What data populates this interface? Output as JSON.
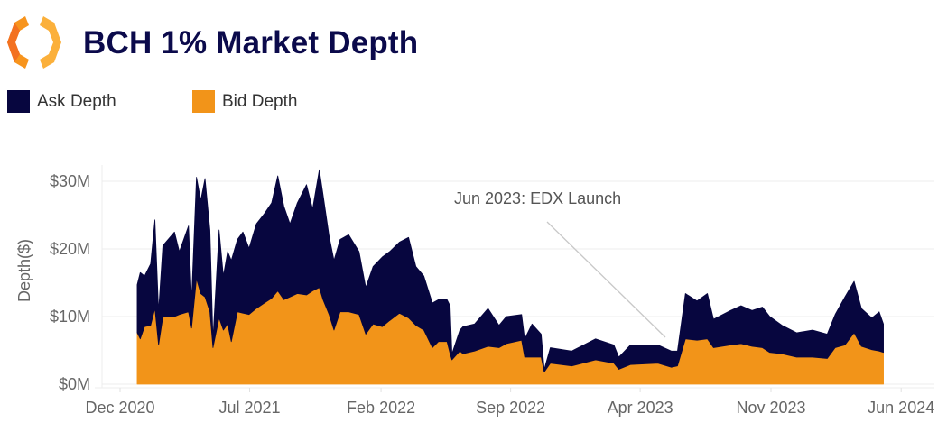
{
  "header": {
    "title": "BCH 1% Market Depth",
    "logo": "orange-hexagon-logo"
  },
  "legend": [
    {
      "label": "Ask Depth",
      "color": "#07063f"
    },
    {
      "label": "Bid Depth",
      "color": "#f29419"
    }
  ],
  "chart_data": {
    "type": "area",
    "stacked": true,
    "title": "BCH 1% Market Depth",
    "xlabel": "",
    "ylabel": "Depth($)",
    "ylim": [
      0,
      31.7
    ],
    "y_unit": "$M",
    "y_ticks": [
      0,
      10,
      20,
      30
    ],
    "y_tick_labels": [
      "$0M",
      "$10M",
      "$20M",
      "$30M"
    ],
    "x_ticks": [
      "2020-12-01",
      "2021-07-01",
      "2022-02-01",
      "2022-09-01",
      "2023-04-01",
      "2023-11-01",
      "2024-06-01"
    ],
    "x_tick_labels": [
      "Dec 2020",
      "Jul 2021",
      "Feb 2022",
      "Sep 2022",
      "Apr 2023",
      "Nov 2023",
      "Jun 2024"
    ],
    "grid": "horizontal",
    "legend_position": "top-left",
    "annotations": [
      {
        "text": "Jun 2023: EDX Launch",
        "x": "2023-06-01"
      }
    ],
    "x": [
      "2020-12-29",
      "2021-01-03",
      "2021-01-10",
      "2021-01-20",
      "2021-01-27",
      "2021-02-02",
      "2021-02-09",
      "2021-02-28",
      "2021-03-08",
      "2021-03-23",
      "2021-03-28",
      "2021-04-05",
      "2021-04-12",
      "2021-04-19",
      "2021-04-27",
      "2021-05-02",
      "2021-05-12",
      "2021-05-19",
      "2021-05-26",
      "2021-06-01",
      "2021-06-11",
      "2021-06-20",
      "2021-06-30",
      "2021-07-12",
      "2021-07-25",
      "2021-08-06",
      "2021-08-16",
      "2021-08-26",
      "2021-09-05",
      "2021-09-17",
      "2021-10-02",
      "2021-10-12",
      "2021-10-23",
      "2021-10-29",
      "2021-11-08",
      "2021-11-16",
      "2021-11-26",
      "2021-12-10",
      "2021-12-27",
      "2022-01-07",
      "2022-01-19",
      "2022-02-03",
      "2022-02-15",
      "2022-03-03",
      "2022-03-18",
      "2022-03-30",
      "2022-04-12",
      "2022-04-26",
      "2022-05-06",
      "2022-05-20",
      "2022-05-25",
      "2022-05-28",
      "2022-06-10",
      "2022-06-15",
      "2022-07-04",
      "2022-07-26",
      "2022-08-13",
      "2022-08-25",
      "2022-09-19",
      "2022-09-24",
      "2022-10-06",
      "2022-10-21",
      "2022-10-26",
      "2022-11-05",
      "2022-12-10",
      "2023-01-18",
      "2023-02-17",
      "2023-02-25",
      "2023-03-16",
      "2023-04-30",
      "2023-05-22",
      "2023-06-01",
      "2023-06-14",
      "2023-07-03",
      "2023-07-20",
      "2023-07-30",
      "2023-08-27",
      "2023-09-13",
      "2023-10-01",
      "2023-10-18",
      "2023-10-30",
      "2023-11-19",
      "2023-12-13",
      "2024-01-08",
      "2024-02-01",
      "2024-02-14",
      "2024-03-01",
      "2024-03-16",
      "2024-03-28",
      "2024-04-14",
      "2024-04-26",
      "2024-05-03"
    ],
    "series": [
      {
        "name": "Bid Depth",
        "color": "#f29419",
        "values": [
          7.6,
          6.7,
          8.5,
          8.7,
          11.2,
          5.8,
          9.9,
          10,
          10.3,
          10.7,
          8.3,
          15.6,
          13.4,
          12.9,
          10.7,
          5.4,
          9.8,
          8,
          8.9,
          6.3,
          10.7,
          10.5,
          10.3,
          11.2,
          12,
          12.7,
          13.8,
          12.5,
          12.9,
          13.4,
          13.2,
          13.8,
          14.3,
          12.5,
          10.3,
          8,
          10.7,
          10.7,
          10.3,
          7.4,
          8.9,
          8.5,
          9.4,
          10.5,
          9.8,
          8.7,
          8,
          5.4,
          6.3,
          6.3,
          4.5,
          3.6,
          4.9,
          4.5,
          4.9,
          5.6,
          5.4,
          6,
          6.5,
          4,
          4,
          4,
          1.8,
          3.1,
          2.7,
          3.6,
          3.1,
          2.2,
          2.9,
          3.1,
          2.5,
          2.7,
          6.7,
          6.5,
          6.7,
          5.4,
          5.8,
          6,
          5.6,
          5.4,
          4.7,
          4.5,
          4,
          4,
          3.8,
          5.4,
          5.8,
          7.6,
          5.6,
          5.1,
          4.9,
          4.7
        ]
      },
      {
        "name": "Ask Depth",
        "color": "#07063f",
        "values": [
          7.1,
          9.8,
          7.5,
          9.1,
          13.1,
          5.0,
          10.6,
          12.5,
          9.3,
          12.7,
          4.2,
          15.0,
          13.8,
          17.5,
          12.1,
          1.3,
          13.0,
          8.0,
          10.7,
          12.0,
          10.7,
          12.0,
          9.8,
          12.5,
          13.2,
          14.1,
          17.0,
          13.8,
          10.8,
          13.4,
          16.3,
          12.1,
          17.4,
          15.6,
          11.6,
          10.3,
          10.7,
          11.4,
          9.3,
          6.9,
          8.5,
          10.3,
          10.2,
          10.5,
          11.9,
          8.7,
          8.0,
          6.6,
          6.2,
          6.2,
          7.1,
          0.9,
          3.1,
          4.0,
          4.0,
          5.6,
          3.3,
          4.0,
          3.8,
          2.7,
          4.9,
          3.4,
          0.4,
          2.3,
          2.2,
          3.1,
          2.7,
          1.8,
          2.9,
          2.7,
          2.4,
          2.2,
          6.7,
          5.8,
          6.7,
          4.2,
          5.1,
          5.6,
          5.3,
          6.0,
          5.3,
          4.2,
          3.6,
          4.0,
          3.6,
          4.9,
          7.1,
          7.6,
          5.6,
          4.7,
          5.8,
          4.2
        ]
      }
    ]
  }
}
